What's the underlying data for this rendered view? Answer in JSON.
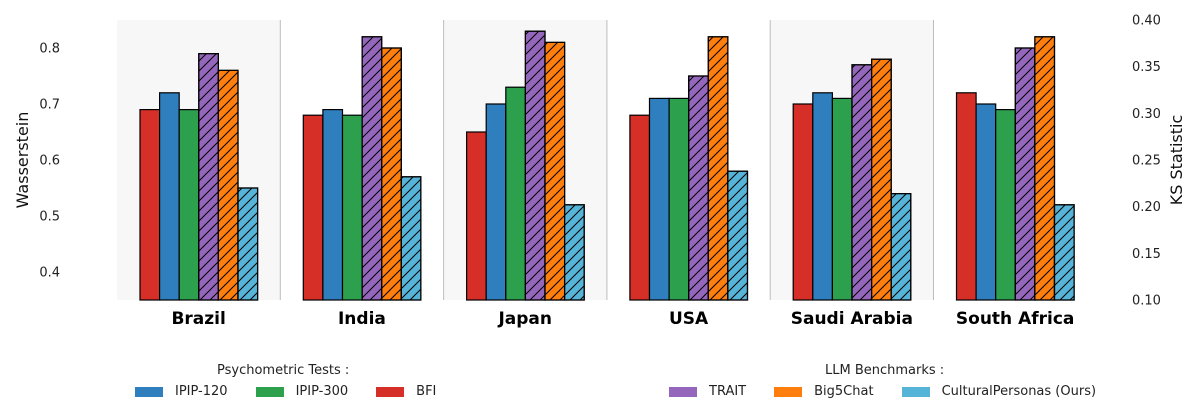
{
  "chart_data": {
    "type": "bar",
    "categories": [
      "Brazil",
      "India",
      "Japan",
      "USA",
      "Saudi Arabia",
      "South Africa"
    ],
    "ylabel_left": "Wasserstein",
    "ylabel_right": "KS Statistic",
    "ylim_left": [
      0.35,
      0.85
    ],
    "ylim_right": [
      0.1,
      0.4
    ],
    "yticks_left": [
      "0.4",
      "0.5",
      "0.6",
      "0.7",
      "0.8"
    ],
    "yticks_right": [
      "0.10",
      "0.15",
      "0.20",
      "0.25",
      "0.30",
      "0.35",
      "0.40"
    ],
    "series": [
      {
        "name": "BFI",
        "color": "#d62f27",
        "hatch": false,
        "values": [
          0.69,
          0.68,
          0.65,
          0.68,
          0.7,
          0.72
        ]
      },
      {
        "name": "IPIP-120",
        "color": "#2f7fbf",
        "hatch": false,
        "values": [
          0.72,
          0.69,
          0.7,
          0.71,
          0.72,
          0.7
        ]
      },
      {
        "name": "IPIP-300",
        "color": "#2ca04c",
        "hatch": false,
        "values": [
          0.69,
          0.68,
          0.73,
          0.71,
          0.71,
          0.69
        ]
      },
      {
        "name": "TRAIT",
        "color": "#9467bd",
        "hatch": true,
        "values": [
          0.79,
          0.82,
          0.83,
          0.75,
          0.77,
          0.8
        ]
      },
      {
        "name": "Big5Chat",
        "color": "#ff7f0e",
        "hatch": true,
        "values": [
          0.76,
          0.8,
          0.81,
          0.82,
          0.78,
          0.82
        ]
      },
      {
        "name": "CulturalPersonas (Ours)",
        "color": "#56b4d9",
        "hatch": true,
        "values": [
          0.55,
          0.57,
          0.52,
          0.58,
          0.54,
          0.52
        ]
      }
    ]
  },
  "legend": {
    "psychometric_title": "Psychometric Tests :",
    "psychometric_items": [
      {
        "label": "IPIP-120",
        "color": "#2f7fbf"
      },
      {
        "label": "IPIP-300",
        "color": "#2ca04c"
      },
      {
        "label": "BFI",
        "color": "#d62f27"
      }
    ],
    "llm_title": "LLM Benchmarks :",
    "llm_items": [
      {
        "label": "TRAIT",
        "color": "#9467bd"
      },
      {
        "label": "Big5Chat",
        "color": "#ff7f0e"
      },
      {
        "label": "CulturalPersonas (Ours)",
        "color": "#56b4d9"
      }
    ]
  }
}
